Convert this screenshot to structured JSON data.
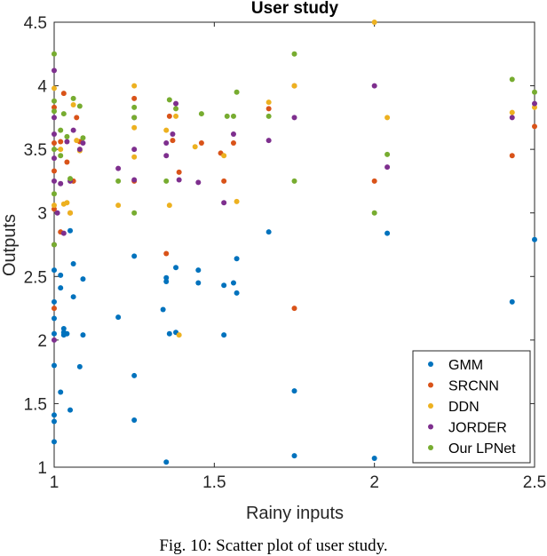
{
  "chart_data": {
    "type": "scatter",
    "title": "User study",
    "xlabel": "Rainy inputs",
    "ylabel": "Outputs",
    "xlim": [
      1,
      2.5
    ],
    "ylim": [
      1,
      4.5
    ],
    "xticks": [
      "1",
      "1.5",
      "2",
      "2.5"
    ],
    "yticks": [
      "1",
      "1.5",
      "2",
      "2.5",
      "3",
      "3.5",
      "4",
      "4.5"
    ],
    "legend_position": "bottom-right",
    "series": [
      {
        "name": "GMM",
        "color": "#0072BD",
        "points": [
          [
            1.0,
            1.2
          ],
          [
            1.0,
            1.36
          ],
          [
            1.0,
            1.41
          ],
          [
            1.0,
            1.8
          ],
          [
            1.0,
            2.05
          ],
          [
            1.0,
            2.17
          ],
          [
            1.0,
            2.3
          ],
          [
            1.0,
            2.55
          ],
          [
            1.02,
            1.59
          ],
          [
            1.02,
            2.41
          ],
          [
            1.02,
            2.51
          ],
          [
            1.03,
            2.04
          ],
          [
            1.03,
            2.06
          ],
          [
            1.03,
            2.09
          ],
          [
            1.04,
            2.05
          ],
          [
            1.05,
            1.45
          ],
          [
            1.05,
            2.86
          ],
          [
            1.06,
            2.34
          ],
          [
            1.06,
            2.6
          ],
          [
            1.08,
            1.79
          ],
          [
            1.09,
            2.04
          ],
          [
            1.09,
            2.48
          ],
          [
            1.2,
            2.18
          ],
          [
            1.25,
            1.37
          ],
          [
            1.25,
            1.72
          ],
          [
            1.25,
            2.66
          ],
          [
            1.34,
            2.24
          ],
          [
            1.35,
            1.04
          ],
          [
            1.35,
            2.46
          ],
          [
            1.35,
            2.49
          ],
          [
            1.36,
            2.05
          ],
          [
            1.38,
            2.06
          ],
          [
            1.38,
            2.57
          ],
          [
            1.45,
            2.45
          ],
          [
            1.45,
            2.55
          ],
          [
            1.53,
            2.04
          ],
          [
            1.53,
            2.43
          ],
          [
            1.56,
            2.45
          ],
          [
            1.57,
            2.37
          ],
          [
            1.57,
            2.64
          ],
          [
            1.67,
            2.85
          ],
          [
            1.75,
            1.09
          ],
          [
            1.75,
            1.6
          ],
          [
            2.0,
            1.07
          ],
          [
            2.04,
            2.84
          ],
          [
            2.43,
            2.3
          ],
          [
            2.5,
            2.79
          ]
        ]
      },
      {
        "name": "SRCNN",
        "color": "#D95319",
        "points": [
          [
            1.0,
            2.25
          ],
          [
            1.0,
            3.03
          ],
          [
            1.0,
            3.33
          ],
          [
            1.0,
            3.55
          ],
          [
            1.0,
            3.83
          ],
          [
            1.02,
            2.85
          ],
          [
            1.02,
            3.56
          ],
          [
            1.03,
            3.94
          ],
          [
            1.04,
            3.4
          ],
          [
            1.05,
            3.0
          ],
          [
            1.06,
            3.25
          ],
          [
            1.07,
            3.75
          ],
          [
            1.08,
            3.56
          ],
          [
            1.25,
            3.25
          ],
          [
            1.25,
            3.9
          ],
          [
            1.35,
            2.68
          ],
          [
            1.36,
            3.76
          ],
          [
            1.37,
            3.57
          ],
          [
            1.39,
            3.32
          ],
          [
            1.46,
            3.55
          ],
          [
            1.52,
            3.47
          ],
          [
            1.53,
            3.25
          ],
          [
            1.56,
            3.55
          ],
          [
            1.67,
            3.82
          ],
          [
            1.75,
            2.25
          ],
          [
            1.75,
            4.0
          ],
          [
            2.0,
            3.25
          ],
          [
            2.43,
            3.45
          ],
          [
            2.5,
            3.68
          ]
        ]
      },
      {
        "name": "DDN",
        "color": "#EDB120",
        "points": [
          [
            1.0,
            3.06
          ],
          [
            1.0,
            3.98
          ],
          [
            1.02,
            3.5
          ],
          [
            1.03,
            3.07
          ],
          [
            1.04,
            3.08
          ],
          [
            1.05,
            3.0
          ],
          [
            1.06,
            3.85
          ],
          [
            1.07,
            3.57
          ],
          [
            1.08,
            3.49
          ],
          [
            1.2,
            3.06
          ],
          [
            1.25,
            3.44
          ],
          [
            1.25,
            3.67
          ],
          [
            1.25,
            4.0
          ],
          [
            1.35,
            3.65
          ],
          [
            1.36,
            3.06
          ],
          [
            1.38,
            3.76
          ],
          [
            1.39,
            2.04
          ],
          [
            1.44,
            3.52
          ],
          [
            1.53,
            3.45
          ],
          [
            1.57,
            3.09
          ],
          [
            1.67,
            3.87
          ],
          [
            1.75,
            4.0
          ],
          [
            2.0,
            4.5
          ],
          [
            2.04,
            3.75
          ],
          [
            2.43,
            3.79
          ],
          [
            2.5,
            3.83
          ]
        ]
      },
      {
        "name": "JORDER",
        "color": "#7E2F8E",
        "points": [
          [
            1.0,
            2.0
          ],
          [
            1.0,
            2.75
          ],
          [
            1.0,
            3.25
          ],
          [
            1.0,
            3.43
          ],
          [
            1.0,
            3.62
          ],
          [
            1.0,
            3.75
          ],
          [
            1.0,
            4.12
          ],
          [
            1.01,
            3.0
          ],
          [
            1.02,
            3.23
          ],
          [
            1.03,
            2.84
          ],
          [
            1.04,
            3.56
          ],
          [
            1.05,
            3.25
          ],
          [
            1.06,
            3.65
          ],
          [
            1.08,
            3.5
          ],
          [
            1.09,
            3.55
          ],
          [
            1.2,
            3.35
          ],
          [
            1.25,
            3.26
          ],
          [
            1.25,
            3.5
          ],
          [
            1.25,
            3.75
          ],
          [
            1.35,
            3.45
          ],
          [
            1.35,
            3.55
          ],
          [
            1.37,
            3.62
          ],
          [
            1.38,
            3.86
          ],
          [
            1.39,
            3.26
          ],
          [
            1.45,
            3.24
          ],
          [
            1.53,
            3.08
          ],
          [
            1.56,
            3.62
          ],
          [
            1.67,
            3.57
          ],
          [
            1.75,
            3.75
          ],
          [
            2.0,
            4.0
          ],
          [
            2.04,
            3.36
          ],
          [
            2.43,
            3.75
          ],
          [
            2.5,
            3.86
          ]
        ]
      },
      {
        "name": "Our LPNet",
        "color": "#77AC30",
        "points": [
          [
            1.0,
            2.75
          ],
          [
            1.0,
            3.15
          ],
          [
            1.0,
            3.5
          ],
          [
            1.0,
            3.8
          ],
          [
            1.0,
            3.88
          ],
          [
            1.0,
            4.25
          ],
          [
            1.02,
            3.45
          ],
          [
            1.02,
            3.65
          ],
          [
            1.03,
            3.78
          ],
          [
            1.04,
            3.6
          ],
          [
            1.05,
            3.27
          ],
          [
            1.06,
            3.9
          ],
          [
            1.08,
            3.84
          ],
          [
            1.09,
            3.59
          ],
          [
            1.2,
            3.25
          ],
          [
            1.25,
            3.0
          ],
          [
            1.25,
            3.75
          ],
          [
            1.25,
            3.83
          ],
          [
            1.35,
            3.25
          ],
          [
            1.36,
            3.89
          ],
          [
            1.38,
            3.82
          ],
          [
            1.46,
            3.78
          ],
          [
            1.54,
            3.76
          ],
          [
            1.56,
            3.76
          ],
          [
            1.57,
            3.95
          ],
          [
            1.67,
            3.76
          ],
          [
            1.75,
            3.25
          ],
          [
            1.75,
            4.25
          ],
          [
            2.0,
            3.0
          ],
          [
            2.04,
            3.46
          ],
          [
            2.43,
            4.05
          ],
          [
            2.5,
            3.95
          ]
        ]
      }
    ]
  },
  "caption": "Fig. 10: Scatter plot of user study."
}
